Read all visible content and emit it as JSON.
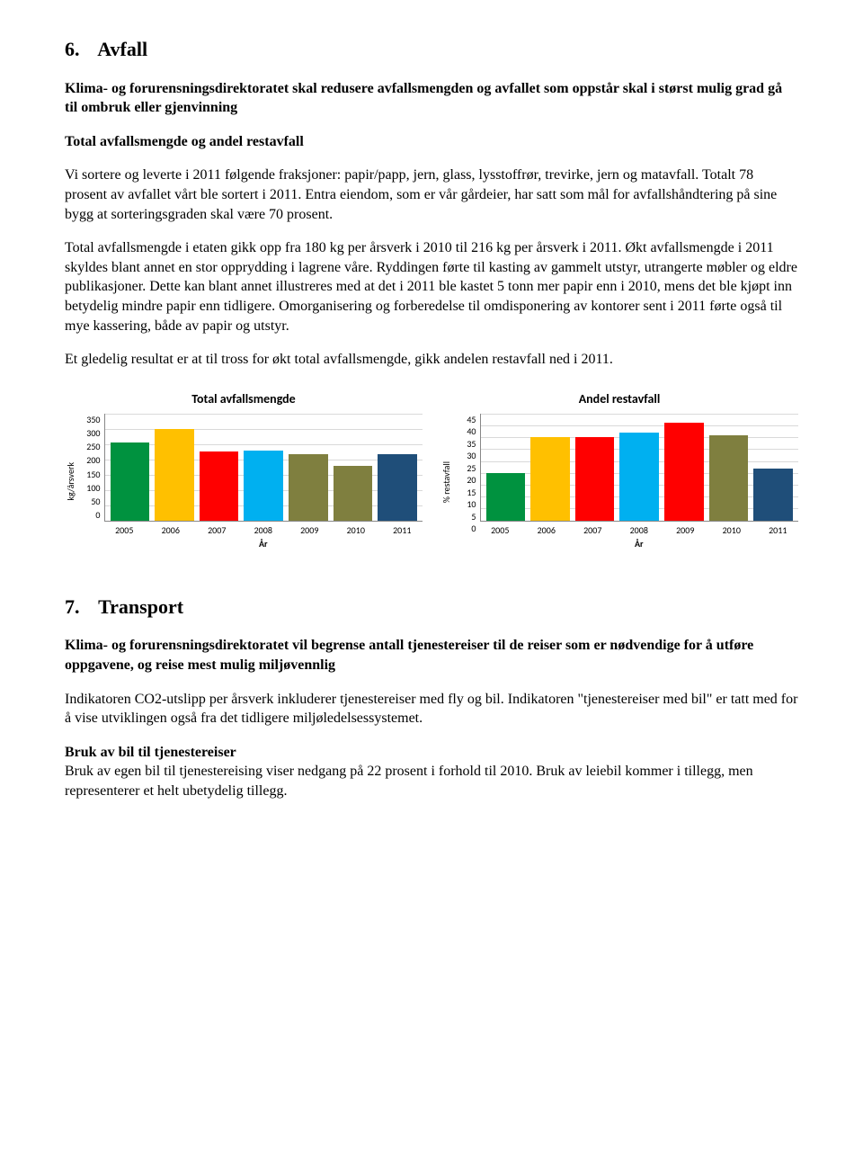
{
  "section6": {
    "number": "6.",
    "title": "Avfall",
    "intro": "Klima- og forurensningsdirektoratet skal redusere avfallsmengden og avfallet som oppstår skal i størst mulig grad gå til ombruk eller gjenvinning",
    "subhead": "Total avfallsmengde og andel restavfall",
    "p1": "Vi sortere og leverte i 2011 følgende fraksjoner: papir/papp, jern, glass, lysstoffrør, trevirke, jern og matavfall. Totalt 78 prosent av avfallet vårt ble sortert i 2011. Entra eiendom, som er vår gårdeier, har satt som mål for avfallshåndtering på sine bygg at sorteringsgraden skal være 70 prosent.",
    "p2": "Total avfallsmengde i etaten gikk opp fra 180 kg per årsverk i 2010 til 216 kg per årsverk i 2011. Økt avfallsmengde i 2011 skyldes blant annet en stor opprydding i lagrene våre. Ryddingen førte til kasting av gammelt utstyr, utrangerte møbler og eldre publikasjoner. Dette kan blant annet illustreres med at det i 2011 ble kastet 5 tonn mer papir enn i 2010, mens det ble kjøpt inn betydelig mindre papir enn tidligere. Omorganisering og forberedelse til omdisponering av kontorer sent i 2011 førte også til mye kassering, både av papir og utstyr.",
    "p3": "Et gledelig resultat er at til tross for økt total avfallsmengde, gikk andelen restavfall ned i 2011."
  },
  "chart1": {
    "type": "bar",
    "title": "Total avfallsmengde",
    "ylabel": "kg/årsverk",
    "xlabel": "År",
    "ymax": 350,
    "ytick_step": 50,
    "yticks": [
      "350",
      "300",
      "250",
      "200",
      "150",
      "100",
      "50",
      "0"
    ],
    "categories": [
      "2005",
      "2006",
      "2007",
      "2008",
      "2009",
      "2010",
      "2011"
    ],
    "values": [
      255,
      300,
      225,
      230,
      218,
      180,
      216
    ],
    "bar_colors": [
      "#00923f",
      "#ffc000",
      "#ff0000",
      "#00b0f0",
      "#7f7f3f",
      "#7f7f3f",
      "#1f4e79"
    ],
    "grid_color": "#d9d9d9",
    "axis_color": "#888888",
    "background_color": "#ffffff",
    "title_fontsize": 14,
    "tick_fontsize": 10
  },
  "chart2": {
    "type": "bar",
    "title": "Andel restavfall",
    "ylabel": "% restavfall",
    "xlabel": "År",
    "ymax": 45,
    "ytick_step": 5,
    "yticks": [
      "45",
      "40",
      "35",
      "30",
      "25",
      "20",
      "15",
      "10",
      "5",
      "0"
    ],
    "categories": [
      "2005",
      "2006",
      "2007",
      "2008",
      "2009",
      "2010",
      "2011"
    ],
    "values": [
      20,
      35,
      35,
      37,
      41,
      36,
      22
    ],
    "bar_colors": [
      "#00923f",
      "#ffc000",
      "#ff0000",
      "#00b0f0",
      "#ff0000",
      "#7f7f3f",
      "#1f4e79"
    ],
    "grid_color": "#d9d9d9",
    "axis_color": "#888888",
    "background_color": "#ffffff",
    "title_fontsize": 14,
    "tick_fontsize": 10
  },
  "section7": {
    "number": "7.",
    "title": "Transport",
    "intro": "Klima- og forurensningsdirektoratet vil begrense antall tjenestereiser til de reiser som er nødvendige for å utføre oppgavene, og reise mest mulig miljøvennlig",
    "p1": "Indikatoren CO2-utslipp per årsverk inkluderer tjenestereiser med fly og bil. Indikatoren \"tjenestereiser med bil\" er tatt med for å vise utviklingen også fra det tidligere miljøledelsessystemet.",
    "subhead": "Bruk av bil til tjenestereiser",
    "p2": "Bruk av egen bil til tjenestereising viser nedgang på 22 prosent i forhold til 2010. Bruk av leiebil kommer i tillegg, men representerer et helt ubetydelig tillegg."
  }
}
